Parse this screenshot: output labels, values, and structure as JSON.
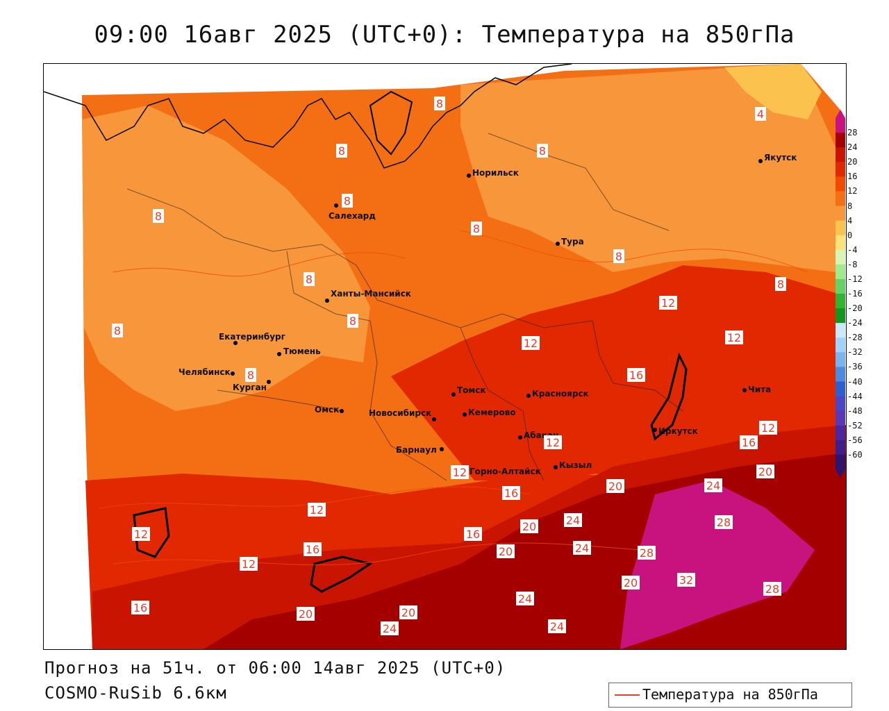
{
  "title": "09:00 16авг 2025 (UTC+0): Температура на 850гПа",
  "footer": {
    "forecast": "Прогноз на 51ч. от 06:00 14авг 2025 (UTC+0)",
    "model": "COSMO-RuSib 6.6км"
  },
  "legend": {
    "label": "Температура на 850гПа",
    "line_color": "#e8402e"
  },
  "colorbar": {
    "labels": [
      "28",
      "24",
      "20",
      "16",
      "12",
      "8",
      "4",
      "0",
      "-4",
      "-8",
      "-12",
      "-16",
      "-20",
      "-24",
      "-28",
      "-32",
      "-36",
      "-40",
      "-44",
      "-48",
      "-52",
      "-56",
      "-60"
    ],
    "colors": [
      "#c8137e",
      "#a50000",
      "#c81400",
      "#e12800",
      "#f04b00",
      "#f46e14",
      "#f7963a",
      "#fbc24e",
      "#ffe27a",
      "#d7f5b4",
      "#a0eb8c",
      "#64d264",
      "#32b432",
      "#14961e",
      "#c8eaff",
      "#a0d2ff",
      "#78b4f0",
      "#4b8ce1",
      "#2d5fd2",
      "#4b46c8",
      "#5a37b4",
      "#4b28a0",
      "#3c1e8c",
      "#2d146e"
    ]
  },
  "cities": [
    {
      "name": "Норильск"
    },
    {
      "name": "Салехард"
    },
    {
      "name": "Тура"
    },
    {
      "name": "Якутск"
    },
    {
      "name": "Ханты-Мансийск"
    },
    {
      "name": "Екатеринбург"
    },
    {
      "name": "Тюмень"
    },
    {
      "name": "Челябинск"
    },
    {
      "name": "Курган"
    },
    {
      "name": "Омск"
    },
    {
      "name": "Новосибирск"
    },
    {
      "name": "Томск"
    },
    {
      "name": "Кемерово"
    },
    {
      "name": "Красноярск"
    },
    {
      "name": "Барнаул"
    },
    {
      "name": "Абакан"
    },
    {
      "name": "Горно-Алтайск"
    },
    {
      "name": "Кызыл"
    },
    {
      "name": "Иркутск"
    },
    {
      "name": "Чита"
    }
  ],
  "contour_labels": [
    "4",
    "8",
    "8",
    "8",
    "8",
    "8",
    "8",
    "8",
    "8",
    "8",
    "8",
    "8",
    "8",
    "12",
    "12",
    "12",
    "12",
    "12",
    "12",
    "12",
    "12",
    "12",
    "16",
    "16",
    "16",
    "16",
    "16",
    "16",
    "20",
    "20",
    "20",
    "20",
    "20",
    "20",
    "20",
    "24",
    "24",
    "24",
    "24",
    "24",
    "24",
    "28",
    "28",
    "28",
    "32"
  ]
}
